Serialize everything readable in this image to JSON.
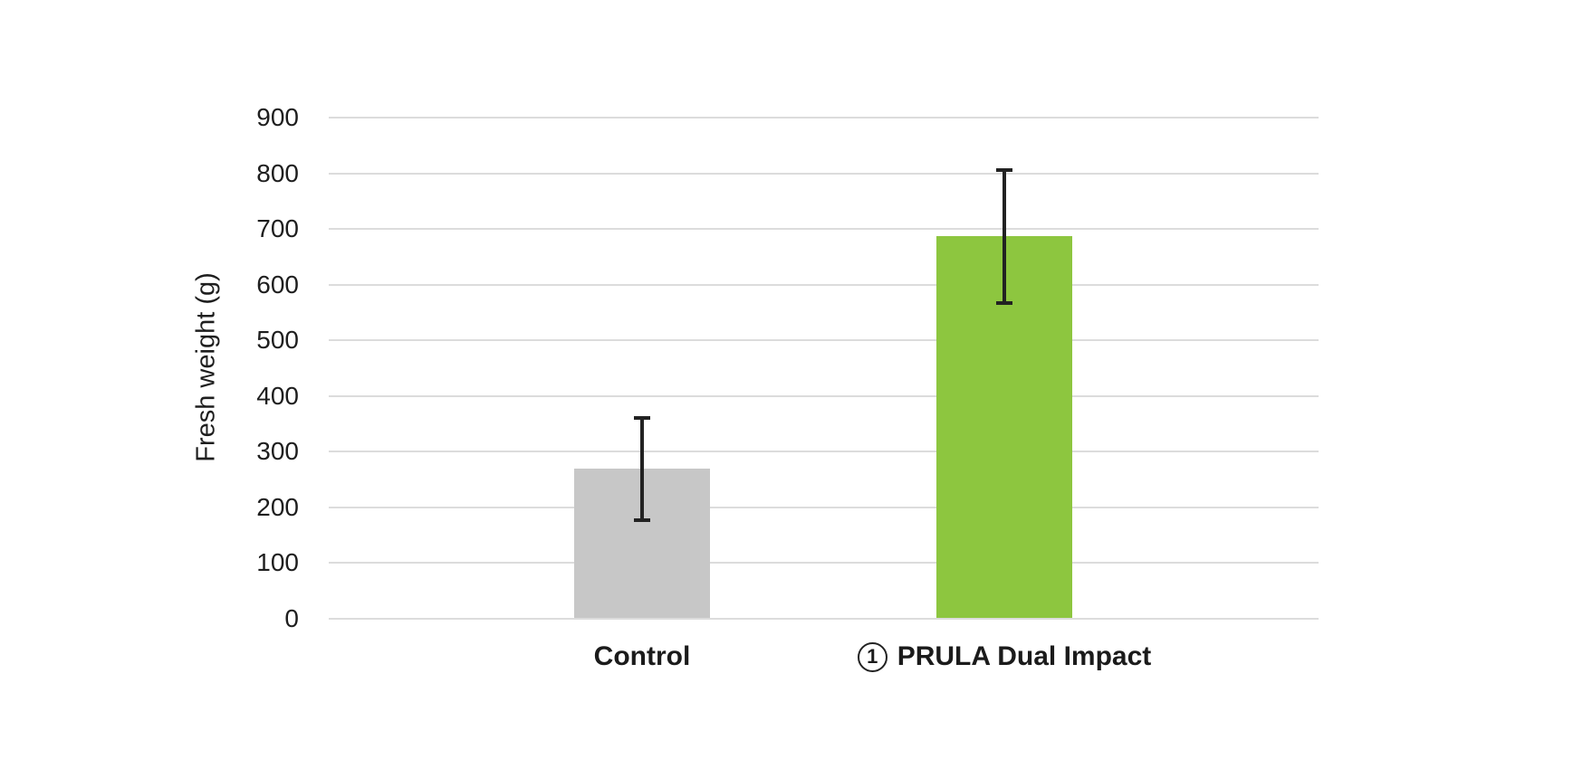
{
  "chart_data": {
    "type": "bar",
    "title": "",
    "xlabel": "",
    "ylabel": "Fresh weight (g)",
    "categories": [
      "Control",
      "① PRULA Dual Impact"
    ],
    "category_labels": [
      {
        "circled_prefix": "",
        "label": "Control"
      },
      {
        "circled_prefix": "1",
        "label": "PRULA Dual Impact"
      }
    ],
    "series": [
      {
        "name": "Fresh weight (g)",
        "values": [
          268,
          685
        ],
        "error_bars": [
          95,
          123
        ],
        "bar_colors": [
          "#C7C7C7",
          "#8DC63F"
        ]
      }
    ],
    "yticks": [
      0,
      100,
      200,
      300,
      400,
      500,
      600,
      700,
      800,
      900
    ],
    "ylim": [
      0,
      900
    ],
    "grid": "horizontal",
    "legend": "none",
    "colors": {
      "control_bar": "#C7C7C7",
      "treatment_bar": "#8DC63F",
      "gridline": "#DCDCDC",
      "error_bar": "#222222",
      "text": "#1E1E1E",
      "background": "#FFFFFF"
    }
  }
}
